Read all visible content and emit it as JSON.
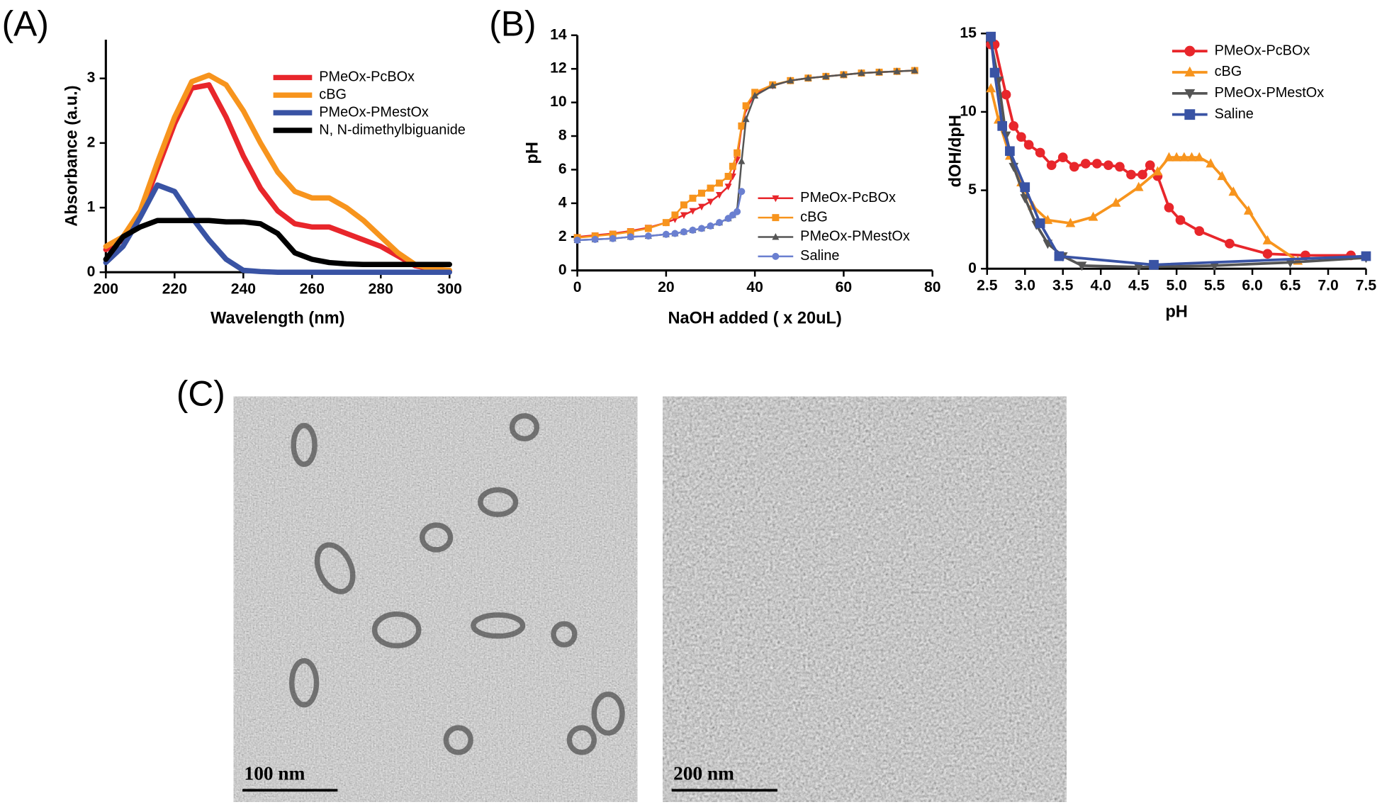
{
  "panel_labels": [
    "(A)",
    "(B)",
    "(C)"
  ],
  "chart_data": [
    {
      "type": "line",
      "xlabel": "Wavelength (nm)",
      "ylabel": "Absorbance (a.u.)",
      "xlim": [
        200,
        300
      ],
      "xticks": [
        200,
        220,
        240,
        260,
        280,
        300
      ],
      "ylim": [
        0,
        3.6
      ],
      "yticks": [
        0,
        1,
        2,
        3
      ],
      "line_width": 6,
      "legend": "upper right",
      "x": [
        200,
        205,
        210,
        215,
        220,
        225,
        230,
        235,
        240,
        245,
        250,
        255,
        260,
        265,
        270,
        275,
        280,
        285,
        290,
        295,
        300
      ],
      "series": [
        {
          "name": "PMeOx-PcBOx",
          "color": "#e8262b",
          "values": [
            0.35,
            0.5,
            0.9,
            1.6,
            2.3,
            2.85,
            2.9,
            2.4,
            1.8,
            1.3,
            0.95,
            0.75,
            0.7,
            0.7,
            0.6,
            0.5,
            0.4,
            0.25,
            0.1,
            0.05,
            0.02
          ]
        },
        {
          "name": "cBG",
          "color": "#f7941d",
          "values": [
            0.4,
            0.55,
            0.95,
            1.7,
            2.4,
            2.95,
            3.05,
            2.9,
            2.5,
            2.0,
            1.55,
            1.25,
            1.15,
            1.15,
            1.0,
            0.8,
            0.55,
            0.3,
            0.12,
            0.05,
            0.03
          ]
        },
        {
          "name": "PMeOx-PMestOx",
          "color": "#3953a4",
          "values": [
            0.15,
            0.4,
            0.85,
            1.35,
            1.25,
            0.85,
            0.5,
            0.2,
            0.03,
            0.01,
            0,
            0,
            0,
            0,
            0,
            0,
            0,
            0,
            0,
            0,
            0
          ]
        },
        {
          "name": "N, N-dimethylbiguanide",
          "color": "#000000",
          "values": [
            0.2,
            0.55,
            0.7,
            0.8,
            0.8,
            0.8,
            0.8,
            0.78,
            0.78,
            0.75,
            0.6,
            0.3,
            0.2,
            0.15,
            0.13,
            0.12,
            0.12,
            0.12,
            0.12,
            0.12,
            0.12
          ]
        }
      ]
    },
    {
      "type": "line",
      "xlabel": "NaOH added ( x 20uL)",
      "ylabel": "pH",
      "xlim": [
        0,
        80
      ],
      "xticks": [
        0,
        20,
        40,
        60,
        80
      ],
      "ylim": [
        0,
        14
      ],
      "yticks": [
        0,
        2,
        4,
        6,
        8,
        10,
        12,
        14
      ],
      "line_width": 2,
      "legend": "lower right",
      "x": [
        0,
        4,
        8,
        12,
        16,
        20,
        22,
        24,
        26,
        28,
        30,
        32,
        34,
        35,
        36,
        37,
        38,
        40,
        44,
        48,
        52,
        56,
        60,
        64,
        68,
        72,
        76
      ],
      "series": [
        {
          "name": "PMeOx-PcBOx",
          "color": "#e8262b",
          "marker": "triangle-down",
          "values": [
            2.0,
            2.1,
            2.2,
            2.35,
            2.55,
            2.85,
            3.05,
            3.3,
            3.55,
            3.8,
            4.1,
            4.5,
            5.0,
            5.6,
            6.6,
            8.5,
            9.6,
            10.5,
            11.0,
            11.3,
            11.45,
            11.55,
            11.65,
            11.75,
            11.8,
            11.85,
            11.9
          ]
        },
        {
          "name": "cBG",
          "color": "#f7941d",
          "marker": "square",
          "values": [
            1.95,
            2.05,
            2.15,
            2.3,
            2.5,
            2.85,
            3.3,
            3.9,
            4.3,
            4.6,
            4.9,
            5.2,
            5.6,
            6.2,
            7.0,
            8.6,
            9.8,
            10.6,
            11.05,
            11.3,
            11.45,
            11.55,
            11.65,
            11.75,
            11.8,
            11.85,
            11.9
          ]
        },
        {
          "name": "PMeOx-PMestOx",
          "color": "#555555",
          "marker": "triangle",
          "values": [
            1.8,
            1.85,
            1.9,
            2.0,
            2.05,
            2.15,
            2.2,
            2.3,
            2.4,
            2.5,
            2.65,
            2.85,
            3.1,
            3.3,
            3.6,
            6.5,
            9.0,
            10.4,
            11.0,
            11.3,
            11.45,
            11.55,
            11.65,
            11.75,
            11.8,
            11.85,
            11.9
          ]
        },
        {
          "name": "Saline",
          "color": "#6a7fd0",
          "marker": "circle",
          "values": [
            1.8,
            1.85,
            1.9,
            2.0,
            2.05,
            2.15,
            2.2,
            2.3,
            2.4,
            2.5,
            2.65,
            2.85,
            3.1,
            3.3,
            3.5,
            4.7,
            null,
            null,
            null,
            null,
            null,
            null,
            null,
            null,
            null,
            null,
            null
          ]
        }
      ]
    },
    {
      "type": "line",
      "xlabel": "pH",
      "ylabel": "dOH/dpH",
      "xlim": [
        2.5,
        7.5
      ],
      "xticks": [
        2.5,
        {
          "value": 3,
          "label": "3.0"
        },
        3.5,
        {
          "value": 4,
          "label": "4.0"
        },
        4.5,
        {
          "value": 5,
          "label": "5.0"
        },
        5.5,
        {
          "value": 6,
          "label": "6.0"
        },
        6.5,
        {
          "value": 7,
          "label": "7.0"
        },
        7.5
      ],
      "ylim": [
        0,
        15
      ],
      "yticks": [
        0,
        5,
        10,
        15
      ],
      "line_width": 3,
      "legend": "upper right",
      "series": [
        {
          "name": "PMeOx-PcBOx",
          "color": "#e8262b",
          "marker": "circle",
          "x": [
            2.55,
            2.6,
            2.75,
            2.85,
            2.95,
            3.05,
            3.2,
            3.35,
            3.5,
            3.65,
            3.8,
            3.95,
            4.1,
            4.25,
            4.4,
            4.55,
            4.65,
            4.75,
            4.9,
            5.05,
            5.3,
            5.7,
            6.2,
            6.7,
            7.3
          ],
          "values": [
            14.3,
            14.3,
            11.1,
            9.1,
            8.4,
            7.9,
            7.4,
            6.6,
            7.1,
            6.5,
            6.7,
            6.7,
            6.6,
            6.5,
            6.0,
            6.0,
            6.6,
            5.9,
            3.9,
            3.1,
            2.4,
            1.6,
            0.95,
            0.85,
            0.85
          ]
        },
        {
          "name": "cBG",
          "color": "#f7941d",
          "marker": "triangle",
          "x": [
            2.55,
            2.65,
            2.8,
            2.95,
            3.1,
            3.3,
            3.6,
            3.9,
            4.2,
            4.5,
            4.75,
            4.9,
            5.0,
            5.1,
            5.2,
            5.3,
            5.45,
            5.6,
            5.75,
            5.95,
            6.2,
            6.6
          ],
          "values": [
            11.5,
            9.5,
            7.2,
            5.5,
            4.0,
            3.1,
            2.9,
            3.3,
            4.2,
            5.2,
            6.2,
            7.1,
            7.1,
            7.1,
            7.1,
            7.1,
            6.7,
            5.9,
            4.9,
            3.7,
            1.8,
            0.5
          ]
        },
        {
          "name": "PMeOx-PMestOx",
          "color": "#555555",
          "marker": "triangle-down",
          "x": [
            2.55,
            2.65,
            2.75,
            2.85,
            3.0,
            3.15,
            3.3,
            3.5,
            3.75,
            4.5,
            5.5,
            6.5,
            7.5
          ],
          "values": [
            14.5,
            12.0,
            8.5,
            6.5,
            4.5,
            2.8,
            1.6,
            0.8,
            0.2,
            0.1,
            0.2,
            0.4,
            0.7
          ]
        },
        {
          "name": "Saline",
          "color": "#3953a4",
          "marker": "square",
          "x": [
            2.55,
            2.6,
            2.7,
            2.8,
            3.0,
            3.2,
            3.45,
            4.7,
            7.5
          ],
          "values": [
            14.8,
            12.5,
            9.1,
            7.5,
            5.2,
            2.9,
            0.8,
            0.25,
            0.8
          ]
        }
      ]
    }
  ],
  "images": [
    {
      "scale_bar": "100 nm"
    },
    {
      "scale_bar": "200 nm"
    }
  ]
}
